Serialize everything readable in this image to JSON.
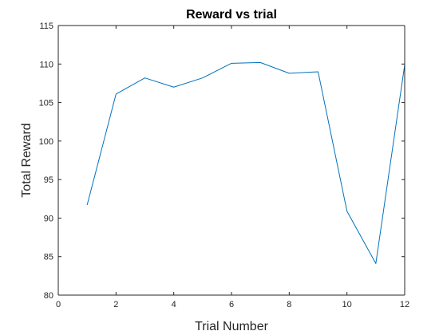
{
  "chart_data": {
    "type": "line",
    "title": "Reward vs trial",
    "xlabel": "Trial Number",
    "ylabel": "Total Reward",
    "xlim": [
      0,
      12
    ],
    "ylim": [
      80,
      115
    ],
    "xticks": [
      0,
      2,
      4,
      6,
      8,
      10,
      12
    ],
    "yticks": [
      80,
      85,
      90,
      95,
      100,
      105,
      110,
      115
    ],
    "grid": false,
    "box": true,
    "series": [
      {
        "color": "#0072BD",
        "x": [
          1,
          2,
          3,
          4,
          5,
          6,
          7,
          8,
          9,
          10,
          11,
          12
        ],
        "y": [
          91.7,
          106.1,
          108.2,
          107.0,
          108.2,
          110.1,
          110.2,
          108.8,
          109.0,
          90.9,
          84.1,
          109.9
        ]
      }
    ]
  }
}
